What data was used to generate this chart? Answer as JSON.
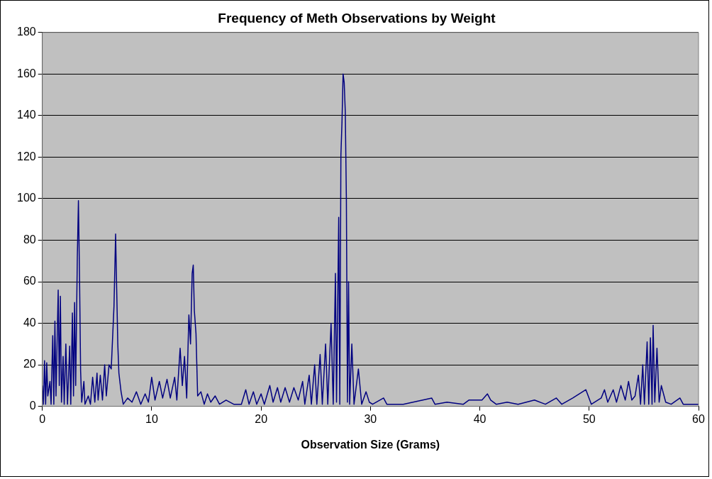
{
  "chart_data": {
    "type": "line",
    "title": "Frequency of Meth Observations by Weight",
    "xlabel": "Observation Size (Grams)",
    "x": [
      0,
      0.1,
      0.2,
      0.3,
      0.4,
      0.5,
      0.7,
      0.8,
      0.95,
      1.05,
      1.15,
      1.25,
      1.45,
      1.55,
      1.65,
      1.75,
      1.9,
      2.0,
      2.15,
      2.3,
      2.5,
      2.6,
      2.75,
      2.85,
      2.95,
      3.05,
      3.2,
      3.3,
      3.4,
      3.5,
      3.6,
      3.8,
      3.9,
      4.2,
      4.4,
      4.6,
      4.8,
      5.0,
      5.1,
      5.3,
      5.5,
      5.7,
      5.85,
      6.1,
      6.3,
      6.55,
      6.7,
      6.8,
      6.9,
      7.0,
      7.2,
      7.4,
      7.8,
      8.2,
      8.6,
      9.0,
      9.4,
      9.7,
      10.0,
      10.3,
      10.7,
      11.0,
      11.4,
      11.7,
      12.1,
      12.3,
      12.6,
      12.8,
      13.0,
      13.2,
      13.4,
      13.55,
      13.7,
      13.8,
      13.9,
      14.05,
      14.2,
      14.5,
      14.8,
      15.1,
      15.4,
      15.8,
      16.2,
      16.8,
      17.5,
      18.2,
      18.6,
      18.9,
      19.3,
      19.6,
      20.0,
      20.3,
      20.8,
      21.1,
      21.5,
      21.8,
      22.2,
      22.6,
      23.0,
      23.4,
      23.8,
      24.0,
      24.4,
      24.6,
      24.9,
      25.1,
      25.4,
      25.6,
      25.9,
      26.1,
      26.4,
      26.6,
      26.8,
      26.9,
      27.1,
      27.2,
      27.3,
      27.4,
      27.5,
      27.6,
      27.7,
      27.8,
      27.9,
      28.0,
      28.1,
      28.3,
      28.5,
      28.9,
      29.2,
      29.6,
      29.9,
      30.2,
      31.2,
      31.5,
      33.0,
      35.6,
      35.9,
      37.0,
      38.5,
      39.0,
      40.2,
      40.7,
      41.0,
      41.5,
      42.5,
      43.5,
      45.0,
      46.0,
      47.0,
      47.5,
      48.5,
      49.7,
      50.2,
      51.1,
      51.4,
      51.7,
      52.2,
      52.5,
      52.9,
      53.3,
      53.6,
      53.9,
      54.2,
      54.5,
      54.7,
      54.9,
      55.05,
      55.3,
      55.45,
      55.6,
      55.75,
      55.85,
      56.0,
      56.2,
      56.4,
      56.6,
      57.0,
      57.5,
      58.3,
      58.6,
      59.0,
      60.0
    ],
    "series": [
      {
        "color": "#000080",
        "values": [
          10,
          1,
          22,
          1,
          21,
          5,
          12,
          1,
          34,
          1,
          41,
          5,
          56,
          10,
          53,
          2,
          24,
          1,
          30,
          1,
          29,
          1,
          45,
          5,
          50,
          10,
          72,
          99,
          63,
          17,
          2,
          12,
          1,
          5,
          1,
          14,
          2,
          16,
          3,
          15,
          3,
          20,
          5,
          20,
          18,
          48,
          83,
          56,
          30,
          16,
          7,
          1,
          4,
          2,
          7,
          1,
          6,
          2,
          14,
          3,
          12,
          4,
          13,
          4,
          14,
          3,
          28,
          10,
          24,
          4,
          44,
          30,
          64,
          68,
          46,
          35,
          5,
          7,
          1,
          6,
          2,
          5,
          1,
          3,
          1,
          1,
          8,
          1,
          7,
          1,
          6,
          1,
          10,
          2,
          9,
          2,
          9,
          2,
          9,
          3,
          12,
          1,
          15,
          1,
          20,
          1,
          25,
          1,
          30,
          1,
          40,
          1,
          64,
          2,
          91,
          1,
          121,
          137,
          160,
          156,
          142,
          100,
          2,
          60,
          1,
          30,
          1,
          18,
          1,
          7,
          2,
          1,
          4,
          1,
          1,
          4,
          1,
          2,
          1,
          3,
          3,
          6,
          3,
          1,
          2,
          1,
          3,
          1,
          4,
          1,
          4,
          8,
          1,
          4,
          8,
          2,
          8,
          2,
          10,
          3,
          12,
          3,
          5,
          15,
          1,
          20,
          1,
          31,
          1,
          33,
          1,
          39,
          2,
          28,
          2,
          10,
          2,
          1,
          4,
          1,
          1,
          1
        ]
      }
    ],
    "xlim": [
      0,
      60
    ],
    "ylim": [
      0,
      180
    ],
    "xticks": [
      0,
      10,
      20,
      30,
      40,
      50,
      60
    ],
    "yticks": [
      0,
      20,
      40,
      60,
      80,
      100,
      120,
      140,
      160,
      180
    ],
    "grid": "y",
    "marker": "none",
    "line_style": "solid"
  }
}
